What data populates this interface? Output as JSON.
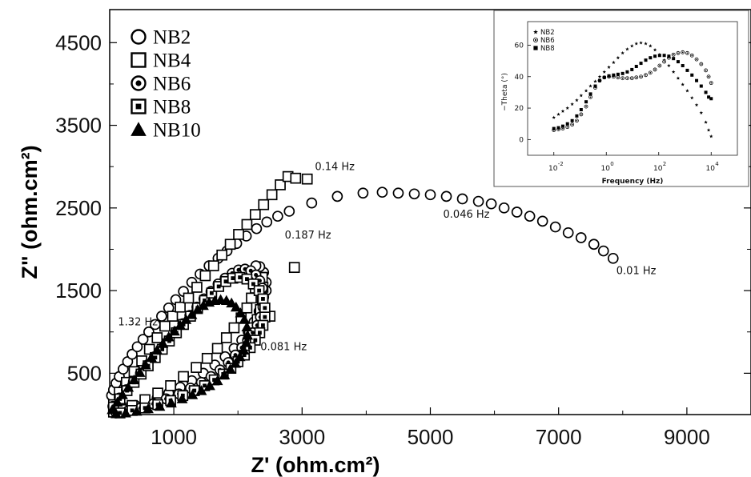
{
  "chart_data": [
    {
      "type": "scatter",
      "xlabel": "Z' (ohm.cm²)",
      "ylabel": "Z\" (ohm.cm²)",
      "xlim": [
        0,
        10000
      ],
      "ylim": [
        0,
        4900
      ],
      "xticks": [
        1000,
        3000,
        5000,
        7000,
        9000
      ],
      "yticks": [
        500,
        1500,
        2500,
        3500,
        4500
      ],
      "xtick_labels": [
        "1000",
        "3000",
        "5000",
        "7000",
        "9000"
      ],
      "ytick_labels": [
        "500",
        "1500",
        "2500",
        "3500",
        "4500"
      ],
      "legend_position": "top-left",
      "annotations": [
        {
          "text": "0.14 Hz",
          "x": 3200,
          "y": 2960
        },
        {
          "text": "0.046 Hz",
          "x": 5200,
          "y": 2380
        },
        {
          "text": "0.187 Hz",
          "x": 2730,
          "y": 2130
        },
        {
          "text": "0.01 Hz",
          "x": 7900,
          "y": 1700
        },
        {
          "text": "1.32 Hz",
          "x": 130,
          "y": 1080
        },
        {
          "text": "0.081 Hz",
          "x": 2350,
          "y": 780
        }
      ],
      "series": [
        {
          "name": "NB2",
          "marker": "open-circle",
          "x": [
            30,
            60,
            100,
            150,
            210,
            280,
            350,
            430,
            520,
            610,
            710,
            810,
            920,
            1030,
            1150,
            1280,
            1410,
            1550,
            1690,
            1830,
            1980,
            2130,
            2290,
            2450,
            2620,
            2800,
            3150,
            3550,
            3950,
            4250,
            4500,
            4750,
            5000,
            5250,
            5500,
            5750,
            5950,
            6150,
            6350,
            6550,
            6750,
            6950,
            7150,
            7350,
            7550,
            7700,
            7850,
            60,
            150,
            260,
            400,
            560,
            740,
            920,
            1100,
            1280,
            1460,
            1640,
            1800,
            1940,
            2060,
            2160,
            2250,
            2330,
            2390,
            2440,
            2440,
            2400,
            2340,
            2280
          ],
          "y": [
            230,
            300,
            380,
            460,
            550,
            640,
            730,
            820,
            910,
            1000,
            1090,
            1190,
            1290,
            1390,
            1490,
            1600,
            1700,
            1800,
            1890,
            1980,
            2070,
            2160,
            2250,
            2330,
            2400,
            2460,
            2560,
            2640,
            2680,
            2690,
            2680,
            2670,
            2660,
            2640,
            2610,
            2580,
            2550,
            2500,
            2450,
            2400,
            2340,
            2270,
            2200,
            2140,
            2060,
            1980,
            1890,
            30,
            50,
            80,
            110,
            150,
            200,
            260,
            330,
            410,
            500,
            600,
            700,
            800,
            900,
            1000,
            1120,
            1250,
            1380,
            1500,
            1600,
            1720,
            1790,
            1800
          ]
        },
        {
          "name": "NB4",
          "marker": "open-square",
          "x": [
            60,
            150,
            260,
            380,
            500,
            620,
            740,
            860,
            980,
            1100,
            1230,
            1360,
            1490,
            1620,
            1750,
            1880,
            2010,
            2140,
            2270,
            2400,
            2530,
            2660,
            2780,
            2900,
            3080,
            60,
            180,
            350,
            550,
            750,
            950,
            1150,
            1350,
            1520,
            1680,
            1820,
            1940,
            2050,
            2140,
            2210,
            2270,
            2320,
            2360,
            2380,
            2390,
            2380,
            2350,
            2300,
            2230,
            2180,
            2880,
            2500
          ],
          "y": [
            120,
            270,
            390,
            520,
            650,
            790,
            930,
            1070,
            1190,
            1300,
            1410,
            1540,
            1680,
            1800,
            1930,
            2060,
            2180,
            2300,
            2420,
            2540,
            2660,
            2780,
            2880,
            2860,
            2850,
            30,
            60,
            110,
            180,
            260,
            350,
            460,
            570,
            680,
            800,
            930,
            1050,
            1170,
            1290,
            1410,
            1530,
            1630,
            1660,
            1660,
            1540,
            1400,
            1270,
            1150,
            1050,
            960,
            1780,
            1190
          ]
        },
        {
          "name": "NB6",
          "marker": "dot-circle",
          "x": [
            50,
            150,
            260,
            370,
            480,
            590,
            700,
            810,
            920,
            1030,
            1140,
            1250,
            1360,
            1470,
            1580,
            1690,
            1800,
            1910,
            2010,
            2110,
            2200,
            2280,
            2340,
            2380,
            2400,
            2390,
            2350,
            2300,
            2230,
            2150,
            2060,
            1960,
            1850,
            1720,
            1580,
            1430,
            1260,
            1080,
            880,
            680,
            480,
            280,
            100
          ],
          "y": [
            100,
            200,
            300,
            400,
            500,
            600,
            700,
            800,
            900,
            1000,
            1100,
            1200,
            1300,
            1400,
            1490,
            1580,
            1650,
            1710,
            1750,
            1760,
            1740,
            1690,
            1620,
            1530,
            1420,
            1300,
            1180,
            1080,
            990,
            900,
            810,
            720,
            630,
            540,
            460,
            390,
            320,
            250,
            190,
            130,
            80,
            40,
            20
          ]
        },
        {
          "name": "NB8",
          "marker": "dot-square",
          "x": [
            60,
            160,
            270,
            380,
            490,
            600,
            710,
            820,
            930,
            1040,
            1150,
            1260,
            1370,
            1480,
            1590,
            1700,
            1810,
            1920,
            2030,
            2140,
            2240,
            2330,
            2390,
            2420,
            2420,
            2390,
            2340,
            2270,
            2190,
            2100,
            2000,
            1890,
            1770,
            1630,
            1480,
            1320,
            1140,
            950,
            750,
            550,
            350,
            160
          ],
          "y": [
            90,
            190,
            290,
            390,
            490,
            590,
            690,
            790,
            890,
            990,
            1090,
            1190,
            1290,
            1380,
            1470,
            1550,
            1610,
            1650,
            1660,
            1640,
            1580,
            1500,
            1400,
            1290,
            1180,
            1080,
            990,
            900,
            810,
            720,
            640,
            560,
            490,
            420,
            350,
            290,
            230,
            170,
            120,
            80,
            50,
            20
          ]
        },
        {
          "name": "NB10",
          "marker": "filled-triangle",
          "x": [
            40,
            120,
            200,
            290,
            380,
            470,
            560,
            650,
            740,
            830,
            920,
            1010,
            1100,
            1190,
            1280,
            1370,
            1460,
            1550,
            1640,
            1730,
            1820,
            1900,
            1970,
            2040,
            2100,
            2140,
            2150,
            2130,
            2090,
            2030,
            1960,
            1880,
            1790,
            1680,
            1560,
            1430,
            1290,
            1130,
            960,
            780,
            600,
            420,
            250,
            100
          ],
          "y": [
            60,
            150,
            240,
            330,
            420,
            510,
            600,
            690,
            780,
            860,
            940,
            1010,
            1080,
            1150,
            1210,
            1270,
            1320,
            1360,
            1380,
            1390,
            1380,
            1350,
            1300,
            1230,
            1150,
            1060,
            960,
            870,
            780,
            700,
            620,
            550,
            480,
            410,
            350,
            290,
            240,
            190,
            140,
            100,
            70,
            40,
            20,
            10
          ]
        }
      ]
    },
    {
      "type": "scatter",
      "xlabel": "Frequency (Hz)",
      "ylabel": "−Theta (°)",
      "x_scale": "log",
      "xlim": [
        0.001,
        100000
      ],
      "ylim": [
        -10,
        75
      ],
      "xticks": [
        0.01,
        1,
        100,
        10000
      ],
      "yticks": [
        0,
        20,
        40,
        60
      ],
      "xtick_labels": [
        [
          "10",
          "-2"
        ],
        [
          "10",
          "0"
        ],
        [
          "10",
          "2"
        ],
        [
          "10",
          "4"
        ]
      ],
      "ytick_labels": [
        "0",
        "20",
        "40",
        "60"
      ],
      "legend_position": "top-left",
      "series": [
        {
          "name": "NB2",
          "marker": "star",
          "x": [
            0.01,
            0.015,
            0.022,
            0.033,
            0.05,
            0.075,
            0.11,
            0.17,
            0.25,
            0.38,
            0.56,
            0.84,
            1.26,
            1.9,
            2.8,
            4.2,
            6.3,
            9.5,
            14,
            21,
            32,
            48,
            72,
            108,
            162,
            243,
            365,
            548,
            822,
            1230,
            1850,
            2780,
            4170,
            6250,
            8000,
            10000
          ],
          "y": [
            14,
            16,
            18,
            20,
            22.5,
            25,
            28,
            31,
            34,
            37,
            40,
            43,
            46,
            49,
            52,
            55,
            57.5,
            59.5,
            61,
            61.5,
            61,
            59.5,
            57,
            54,
            50.5,
            47,
            43,
            39,
            35,
            31,
            26.5,
            22,
            17,
            11,
            6,
            2
          ]
        },
        {
          "name": "NB6",
          "marker": "dot-circle",
          "x": [
            0.01,
            0.015,
            0.022,
            0.033,
            0.05,
            0.075,
            0.11,
            0.17,
            0.25,
            0.38,
            0.56,
            0.84,
            1.26,
            1.9,
            2.8,
            4.2,
            6.3,
            9.5,
            14,
            21,
            32,
            48,
            72,
            108,
            162,
            243,
            365,
            548,
            822,
            1230,
            1850,
            2780,
            4170,
            6250,
            8000,
            10000
          ],
          "y": [
            6,
            6.5,
            7,
            8,
            9.5,
            12,
            16,
            21,
            27,
            33,
            37.5,
            39.5,
            40,
            40,
            39.5,
            39,
            39,
            39,
            39.5,
            40,
            41,
            42.5,
            44.5,
            47,
            49.5,
            52,
            54,
            55,
            55.5,
            55,
            53.5,
            51,
            48,
            44,
            40,
            36
          ]
        },
        {
          "name": "NB8",
          "marker": "filled-square",
          "x": [
            0.01,
            0.015,
            0.022,
            0.033,
            0.05,
            0.075,
            0.11,
            0.17,
            0.25,
            0.38,
            0.56,
            0.84,
            1.26,
            1.9,
            2.8,
            4.2,
            6.3,
            9.5,
            14,
            21,
            32,
            48,
            72,
            108,
            162,
            243,
            365,
            548,
            822,
            1230,
            1850,
            2780,
            4170,
            6250,
            8000,
            10000
          ],
          "y": [
            7,
            7.5,
            8.5,
            10,
            12,
            15,
            19,
            24,
            29,
            34,
            37.5,
            39.5,
            40.5,
            41,
            41.5,
            42,
            43,
            44.5,
            46.5,
            48.5,
            50.5,
            52,
            53,
            53.5,
            53.5,
            53,
            51.5,
            49.5,
            47,
            44,
            41,
            37.5,
            34,
            30,
            27,
            26
          ]
        }
      ]
    }
  ]
}
